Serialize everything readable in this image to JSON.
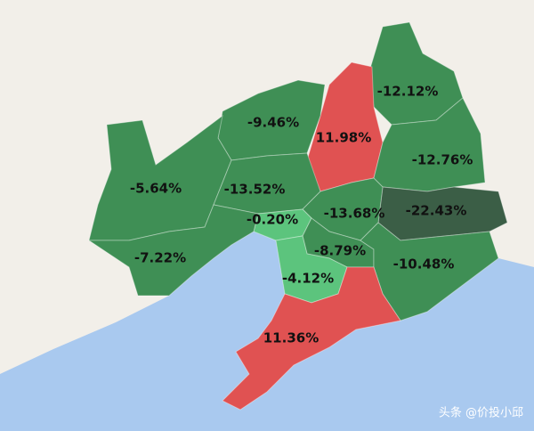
{
  "regions": [
    {
      "label": "-12.12%",
      "color": "#3f8f55"
    },
    {
      "label": "11.98%",
      "color": "#e05252"
    },
    {
      "label": "-9.46%",
      "color": "#3f8f55"
    },
    {
      "label": "-5.64%",
      "color": "#3f8f55"
    },
    {
      "label": "-12.76%",
      "color": "#3f8f55"
    },
    {
      "label": "-13.52%",
      "color": "#3f8f55"
    },
    {
      "label": "-22.43%",
      "color": "#3b5e46"
    },
    {
      "label": "-13.68%",
      "color": "#3f8f55"
    },
    {
      "label": "-0.20%",
      "color": "#5cc47d"
    },
    {
      "label": "-7.22%",
      "color": "#3f8f55"
    },
    {
      "label": "-8.79%",
      "color": "#3f8f55"
    },
    {
      "label": "-10.48%",
      "color": "#3f8f55"
    },
    {
      "label": "-4.12%",
      "color": "#5cc47d"
    },
    {
      "label": "11.36%",
      "color": "#e05252"
    }
  ],
  "watermark": "头条 @价投小邱"
}
